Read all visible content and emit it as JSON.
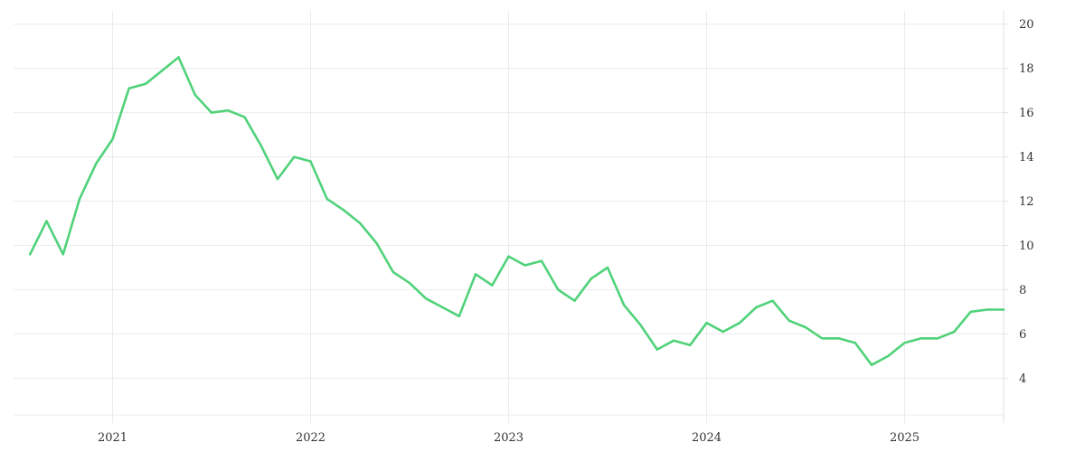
{
  "chart_data": {
    "type": "line",
    "title": "",
    "xlabel": "",
    "ylabel": "",
    "x_tick_labels": [
      "2021",
      "2022",
      "2023",
      "2024",
      "2025"
    ],
    "y_tick_labels": [
      "4",
      "6",
      "8",
      "10",
      "12",
      "14",
      "16",
      "18",
      "20"
    ],
    "ylim": [
      2.3,
      20.6
    ],
    "xlim": [
      "2020-07",
      "2025-07"
    ],
    "y_axis_side": "right",
    "grid": true,
    "legend": "none",
    "colors": {
      "line": "#50d27a",
      "grid": "#ececec",
      "text": "#333333"
    },
    "series": [
      {
        "x": [
          "2020-08",
          "2020-09",
          "2020-10",
          "2020-11",
          "2020-12",
          "2021-01",
          "2021-02",
          "2021-03",
          "2021-04",
          "2021-05",
          "2021-06",
          "2021-07",
          "2021-08",
          "2021-09",
          "2021-10",
          "2021-11",
          "2021-12",
          "2022-01",
          "2022-02",
          "2022-03",
          "2022-04",
          "2022-05",
          "2022-06",
          "2022-07",
          "2022-08",
          "2022-09",
          "2022-10",
          "2022-11",
          "2022-12",
          "2023-01",
          "2023-02",
          "2023-03",
          "2023-04",
          "2023-05",
          "2023-06",
          "2023-07",
          "2023-08",
          "2023-09",
          "2023-10",
          "2023-11",
          "2023-12",
          "2024-01",
          "2024-02",
          "2024-03",
          "2024-04",
          "2024-05",
          "2024-06",
          "2024-07",
          "2024-08",
          "2024-09",
          "2024-10",
          "2024-11",
          "2024-12",
          "2025-01",
          "2025-02",
          "2025-03",
          "2025-04",
          "2025-05",
          "2025-06",
          "2025-07"
        ],
        "values": [
          9.6,
          11.1,
          9.6,
          12.1,
          13.7,
          14.8,
          17.1,
          17.3,
          17.9,
          18.5,
          16.8,
          16.0,
          16.1,
          15.8,
          14.5,
          13.0,
          14.0,
          13.8,
          12.1,
          11.6,
          11.0,
          10.1,
          8.8,
          8.3,
          7.6,
          7.2,
          6.8,
          8.7,
          8.2,
          9.5,
          9.1,
          9.3,
          8.0,
          7.5,
          8.5,
          9.0,
          7.3,
          6.4,
          5.3,
          5.7,
          5.5,
          6.5,
          6.1,
          6.5,
          7.2,
          7.5,
          6.6,
          6.3,
          5.8,
          5.8,
          5.6,
          4.6,
          5.0,
          5.6,
          5.8,
          5.8,
          6.1,
          7.0,
          7.1,
          7.1
        ]
      }
    ]
  }
}
